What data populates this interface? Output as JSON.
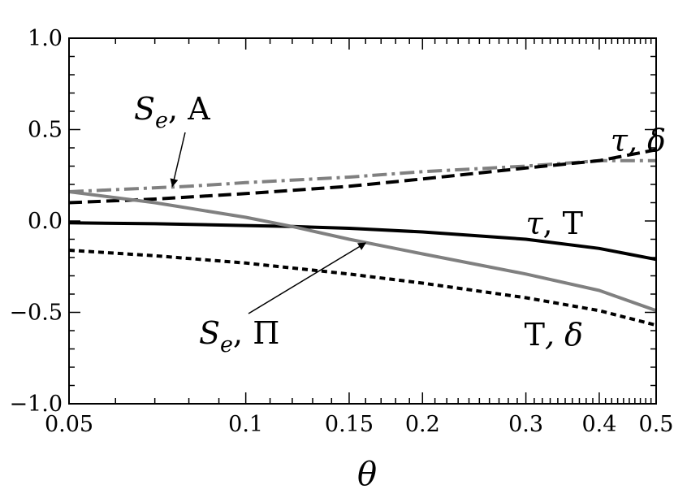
{
  "chart_data": {
    "type": "line",
    "xscale": "log",
    "xlim": [
      0.05,
      0.5
    ],
    "ylim": [
      -1.0,
      1.0
    ],
    "xlabel": "θ",
    "xticks": [
      0.05,
      0.1,
      0.15,
      0.2,
      0.3,
      0.4,
      0.5
    ],
    "xtick_labels": [
      "0.05",
      "0.1",
      "0.15",
      "0.2",
      "0.3",
      "0.4",
      "0.5"
    ],
    "yticks": [
      -1.0,
      -0.5,
      0.0,
      0.5,
      1.0
    ],
    "ytick_labels": [
      "−1.0",
      "−0.5",
      "0.0",
      "0.5",
      "1.0"
    ],
    "grid": false,
    "series": [
      {
        "label_main": "S",
        "label_sub": "e",
        "label_rest": ", A",
        "color": "#808080",
        "style": "dashdot",
        "x": [
          0.05,
          0.08,
          0.1,
          0.15,
          0.2,
          0.3,
          0.4,
          0.5
        ],
        "y": [
          0.16,
          0.19,
          0.21,
          0.24,
          0.27,
          0.3,
          0.33,
          0.33
        ]
      },
      {
        "label_main": "τ",
        "label_sub": "",
        "label_rest": ", δ",
        "color": "#000000",
        "style": "dashed",
        "x": [
          0.05,
          0.07,
          0.1,
          0.15,
          0.2,
          0.3,
          0.4,
          0.5
        ],
        "y": [
          0.1,
          0.12,
          0.15,
          0.19,
          0.23,
          0.29,
          0.33,
          0.39
        ]
      },
      {
        "label_main": "τ",
        "label_sub": "",
        "label_rest": ", T",
        "color": "#000000",
        "style": "solid",
        "x": [
          0.05,
          0.07,
          0.1,
          0.12,
          0.15,
          0.2,
          0.3,
          0.4,
          0.5
        ],
        "y": [
          -0.01,
          -0.015,
          -0.025,
          -0.03,
          -0.04,
          -0.06,
          -0.1,
          -0.15,
          -0.21
        ]
      },
      {
        "label_main": "S",
        "label_sub": "e",
        "label_rest": ", Π",
        "color": "#808080",
        "style": "solid",
        "x": [
          0.05,
          0.07,
          0.1,
          0.12,
          0.15,
          0.2,
          0.3,
          0.4,
          0.5
        ],
        "y": [
          0.16,
          0.1,
          0.02,
          -0.03,
          -0.1,
          -0.18,
          -0.29,
          -0.38,
          -0.49
        ]
      },
      {
        "label_main": "T",
        "label_sub": "",
        "label_rest": ", δ",
        "color": "#000000",
        "style": "dotted",
        "x": [
          0.05,
          0.07,
          0.1,
          0.15,
          0.2,
          0.3,
          0.4,
          0.5
        ],
        "y": [
          -0.16,
          -0.19,
          -0.23,
          -0.29,
          -0.34,
          -0.42,
          -0.49,
          -0.57
        ]
      }
    ],
    "annotations": [
      {
        "key": "seA",
        "series": 0,
        "arrow_to": [
          0.075,
          0.19
        ]
      },
      {
        "key": "tauDelta",
        "series": 1
      },
      {
        "key": "tauT",
        "series": 2
      },
      {
        "key": "sePi",
        "series": 3,
        "arrow_to": [
          0.16,
          -0.12
        ]
      },
      {
        "key": "tDelta",
        "series": 4
      }
    ]
  }
}
